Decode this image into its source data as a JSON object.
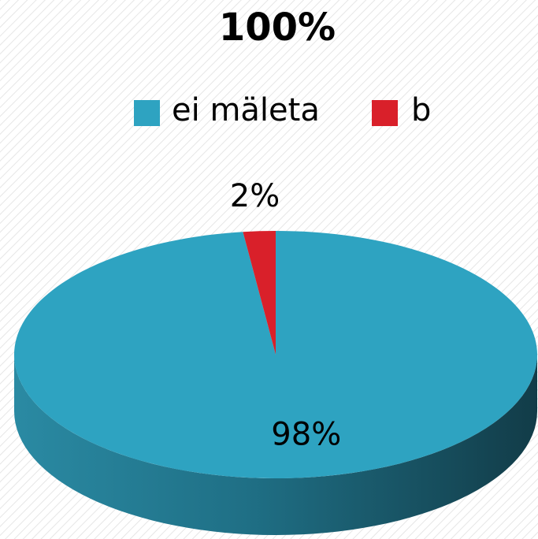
{
  "chart_data": {
    "type": "pie",
    "title": "100%",
    "categories": [
      "ei mäleta",
      "b"
    ],
    "values": [
      98,
      2
    ],
    "value_labels": [
      "98%",
      "2%"
    ],
    "colors": [
      "#2ea3c1",
      "#d9202a"
    ],
    "legend": "top"
  }
}
